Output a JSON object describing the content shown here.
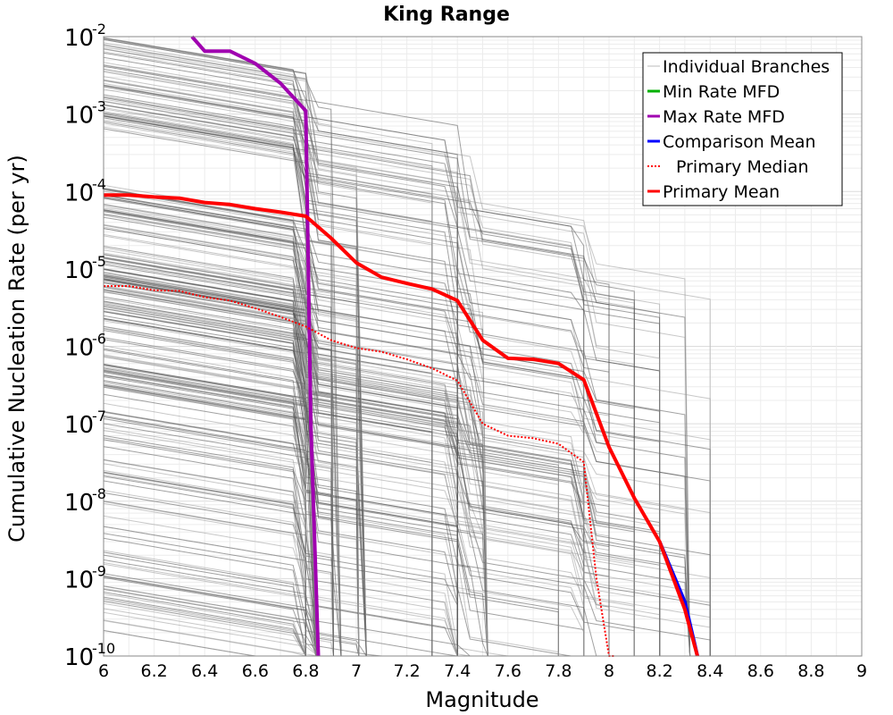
{
  "chart_data": {
    "type": "line",
    "title": "King Range",
    "xlabel": "Magnitude",
    "ylabel": "Cumulative Nucleation Rate (per yr)",
    "xlim": [
      6,
      9
    ],
    "ylim": [
      1e-10,
      0.01
    ],
    "yscale": "log",
    "grid": true,
    "legend_position": "top-right",
    "x_ticks": [
      "6",
      "6.2",
      "6.4",
      "6.6",
      "6.8",
      "7",
      "7.2",
      "7.4",
      "7.6",
      "7.8",
      "8",
      "8.2",
      "8.4",
      "8.6",
      "8.8",
      "9"
    ],
    "y_ticks": [
      {
        "base": "10",
        "exp": "-10",
        "value": 1e-10
      },
      {
        "base": "10",
        "exp": "-9",
        "value": 1e-09
      },
      {
        "base": "10",
        "exp": "-8",
        "value": 1e-08
      },
      {
        "base": "10",
        "exp": "-7",
        "value": 1e-07
      },
      {
        "base": "10",
        "exp": "-6",
        "value": 1e-06
      },
      {
        "base": "10",
        "exp": "-5",
        "value": 1e-05
      },
      {
        "base": "10",
        "exp": "-4",
        "value": 0.0001
      },
      {
        "base": "10",
        "exp": "-3",
        "value": 0.001
      },
      {
        "base": "10",
        "exp": "-2",
        "value": 0.01
      }
    ],
    "series": [
      {
        "name": "Individual Branches",
        "color": "#555555",
        "style": "thin",
        "values": []
      },
      {
        "name": "Min Rate MFD",
        "color": "#00b000",
        "style": "solid",
        "x": [],
        "values": []
      },
      {
        "name": "Max Rate MFD",
        "color": "#a000b0",
        "style": "solid",
        "x": [
          6.35,
          6.4,
          6.5,
          6.6,
          6.7,
          6.8,
          6.82,
          6.85
        ],
        "values": [
          0.01,
          0.0065,
          0.0065,
          0.0045,
          0.0025,
          0.0011,
          1e-07,
          1e-10
        ]
      },
      {
        "name": "Comparison Mean",
        "color": "#0000ff",
        "style": "solid",
        "x": [
          8.2,
          8.3,
          8.35
        ],
        "values": [
          3e-09,
          5e-10,
          1e-10
        ]
      },
      {
        "name": "Primary Median",
        "color": "#ff0000",
        "style": "dotted",
        "x": [
          6.0,
          6.1,
          6.2,
          6.3,
          6.4,
          6.5,
          6.6,
          6.7,
          6.8,
          6.9,
          7.0,
          7.1,
          7.2,
          7.3,
          7.4,
          7.5,
          7.6,
          7.7,
          7.8,
          7.9,
          7.95,
          8.0,
          8.02
        ],
        "values": [
          6e-06,
          6e-06,
          5.3e-06,
          5.2e-06,
          4.3e-06,
          3.9e-06,
          3.1e-06,
          2.4e-06,
          1.8e-06,
          1.2e-06,
          9.5e-07,
          8.5e-07,
          6.8e-07,
          5.2e-07,
          3.6e-07,
          1e-07,
          7e-08,
          6.5e-08,
          5.5e-08,
          3.2e-08,
          1e-09,
          1e-10,
          1e-10
        ]
      },
      {
        "name": "Primary Mean",
        "color": "#ff0000",
        "style": "solid",
        "x": [
          6.0,
          6.1,
          6.2,
          6.3,
          6.4,
          6.5,
          6.6,
          6.7,
          6.8,
          6.9,
          7.0,
          7.1,
          7.2,
          7.3,
          7.4,
          7.5,
          7.6,
          7.7,
          7.8,
          7.9,
          8.0,
          8.1,
          8.2,
          8.3,
          8.35
        ],
        "values": [
          9e-05,
          9e-05,
          8.5e-05,
          8.2e-05,
          7.2e-05,
          6.8e-05,
          6e-05,
          5.4e-05,
          4.8e-05,
          2.5e-05,
          1.2e-05,
          7.8e-06,
          6.5e-06,
          5.5e-06,
          3.9e-06,
          1.2e-06,
          7e-07,
          6.8e-07,
          6e-07,
          3.7e-07,
          5e-08,
          1.1e-08,
          3e-09,
          4e-10,
          1e-10
        ]
      }
    ]
  }
}
